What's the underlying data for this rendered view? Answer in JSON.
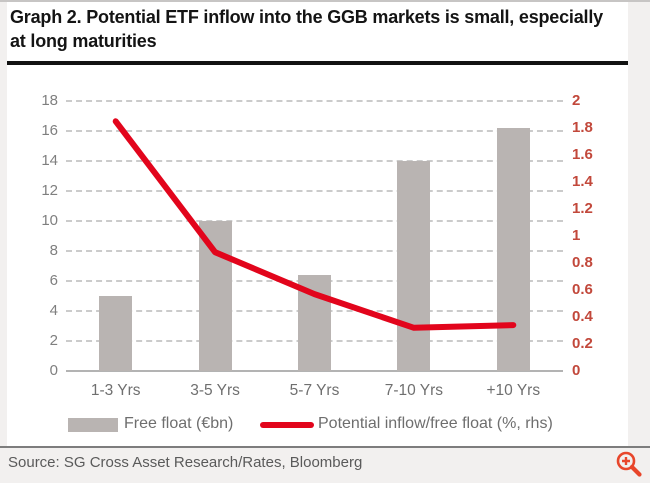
{
  "page": {
    "background": "#f2f0ef",
    "panel_background": "#ffffff"
  },
  "header": {
    "title": "Graph 2. Potential ETF inflow into the GGB markets is small, especially at long maturities",
    "rule_color": "#121212"
  },
  "chart_data": {
    "type": "bar",
    "subtype": "combo bar + line, dual axis",
    "categories": [
      "1-3 Yrs",
      "3-5 Yrs",
      "5-7 Yrs",
      "7-10 Yrs",
      "+10 Yrs"
    ],
    "series": [
      {
        "name": "Free float (€bn)",
        "type": "bar",
        "axis": "left",
        "color": "#b9b4b2",
        "values": [
          5,
          10,
          6.4,
          14,
          16.2
        ]
      },
      {
        "name": "Potential inflow/free float (%, rhs)",
        "type": "line",
        "axis": "right",
        "color": "#e2051c",
        "values": [
          1.85,
          0.88,
          0.57,
          0.32,
          0.34
        ]
      }
    ],
    "left_axis": {
      "min": 0,
      "max": 18,
      "step": 2,
      "tick_labels": [
        "18",
        "16",
        "14",
        "12",
        "10",
        "8",
        "6",
        "4",
        "2",
        "0"
      ],
      "label_color": "#7f7f7f"
    },
    "right_axis": {
      "min": 0,
      "max": 2,
      "step": 0.2,
      "tick_labels": [
        "2",
        "1.8",
        "1.6",
        "1.4",
        "1.2",
        "1",
        "0.8",
        "0.6",
        "0.4",
        "0.2",
        "0"
      ],
      "label_color": "#c2483b"
    },
    "grid": {
      "style": "dashed horizontal",
      "color": "#cbcbcb",
      "baseline_color": "#b3b3b3"
    },
    "x_tick_color": "#6f6f6f",
    "legend_position": "bottom"
  },
  "footer": {
    "source": "Source: SG Cross Asset Research/Rates, Bloomberg",
    "separator_color": "#7d7d7d",
    "text_color": "#5a5a5a",
    "zoom_icon": "magnifier-plus-icon",
    "zoom_icon_color": "#e8462b"
  }
}
